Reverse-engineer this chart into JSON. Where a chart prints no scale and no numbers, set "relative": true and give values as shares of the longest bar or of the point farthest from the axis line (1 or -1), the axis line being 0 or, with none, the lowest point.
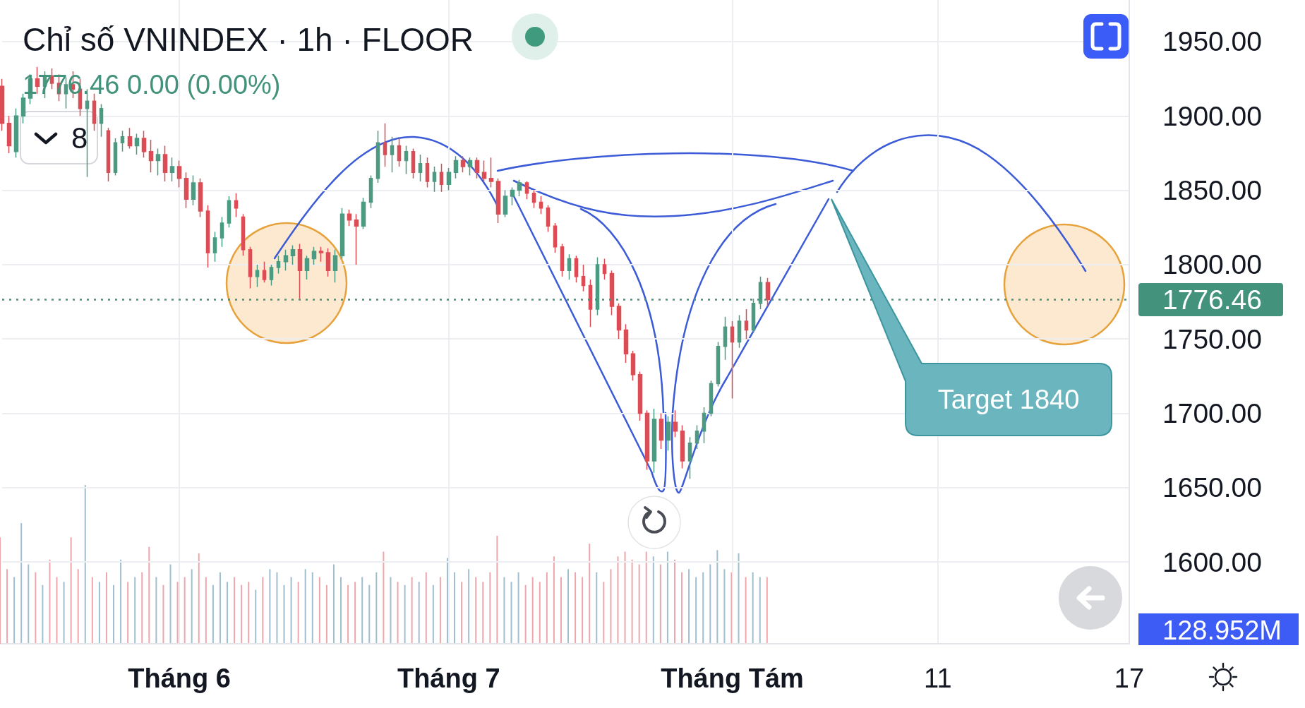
{
  "chart_data": [
    {
      "type": "candlestick",
      "title": "Chỉ số VNINDEX · 1h · FLOOR",
      "subtitle": "1776.46 0.00 (0.00%)",
      "categories": [
        null,
        null,
        null,
        null,
        null,
        null,
        null,
        null,
        null,
        null,
        null,
        null,
        null,
        null,
        null,
        null,
        null,
        null,
        null,
        null,
        null,
        null,
        null,
        null,
        null,
        "Tháng 6",
        null,
        null,
        null,
        null,
        null,
        null,
        null,
        null,
        null,
        null,
        null,
        null,
        null,
        null,
        null,
        null,
        null,
        null,
        null,
        null,
        null,
        null,
        null,
        null,
        null,
        null,
        null,
        null,
        null,
        null,
        null,
        null,
        null,
        null,
        null,
        null,
        null,
        "Tháng 7",
        null,
        null,
        null,
        null,
        null,
        null,
        null,
        null,
        null,
        null,
        null,
        null,
        null,
        null,
        null,
        null,
        null,
        null,
        null,
        null,
        null,
        null,
        null,
        null,
        null,
        null,
        null,
        null,
        null,
        null,
        null,
        null,
        null,
        null,
        null,
        null,
        null,
        null,
        null,
        "Tháng Tám",
        null,
        null,
        null,
        null,
        null,
        null,
        null,
        null,
        null,
        null,
        null,
        null,
        null,
        null,
        null,
        null,
        null,
        null,
        null,
        null,
        null,
        null,
        null,
        null,
        null,
        null,
        null,
        null,
        "11",
        null,
        null,
        null,
        null,
        null,
        null,
        null,
        null,
        null,
        null,
        null,
        null,
        null,
        null,
        null,
        null,
        null,
        null,
        null,
        null,
        null,
        null,
        null,
        null,
        null,
        null,
        "17"
      ],
      "ohlc": [
        [
          1920,
          1925,
          1890,
          1895
        ],
        [
          1895,
          1900,
          1875,
          1880
        ],
        [
          1876,
          1905,
          1872,
          1900
        ],
        [
          1900,
          1915,
          1895,
          1912
        ],
        [
          1912,
          1928,
          1908,
          1925
        ],
        [
          1925,
          1933,
          1915,
          1920
        ],
        [
          1920,
          1930,
          1912,
          1927
        ],
        [
          1927,
          1932,
          1918,
          1922
        ],
        [
          1922,
          1928,
          1910,
          1915
        ],
        [
          1915,
          1926,
          1905,
          1921
        ],
        [
          1921,
          1930,
          1912,
          1918
        ],
        [
          1918,
          1925,
          1900,
          1905
        ],
        [
          1905,
          1918,
          1859,
          1910
        ],
        [
          1910,
          1915,
          1890,
          1895
        ],
        [
          1895,
          1908,
          1886,
          1905
        ],
        [
          1890,
          1892,
          1856,
          1862
        ],
        [
          1862,
          1885,
          1860,
          1882
        ],
        [
          1882,
          1890,
          1876,
          1886
        ],
        [
          1886,
          1892,
          1878,
          1880
        ],
        [
          1880,
          1888,
          1874,
          1885
        ],
        [
          1885,
          1890,
          1872,
          1876
        ],
        [
          1876,
          1884,
          1862,
          1870
        ],
        [
          1870,
          1878,
          1860,
          1874
        ],
        [
          1874,
          1880,
          1856,
          1862
        ],
        [
          1862,
          1872,
          1856,
          1866
        ],
        [
          1866,
          1870,
          1852,
          1858
        ],
        [
          1858,
          1862,
          1838,
          1844
        ],
        [
          1844,
          1860,
          1840,
          1855
        ],
        [
          1855,
          1858,
          1832,
          1836
        ],
        [
          1836,
          1840,
          1798,
          1808
        ],
        [
          1808,
          1822,
          1802,
          1818
        ],
        [
          1818,
          1832,
          1812,
          1828
        ],
        [
          1828,
          1846,
          1825,
          1843
        ],
        [
          1843,
          1848,
          1832,
          1838
        ],
        [
          1832,
          1834,
          1806,
          1810
        ],
        [
          1810,
          1812,
          1784,
          1792
        ],
        [
          1792,
          1800,
          1785,
          1796
        ],
        [
          1796,
          1802,
          1788,
          1790
        ],
        [
          1790,
          1800,
          1786,
          1798
        ],
        [
          1798,
          1806,
          1794,
          1802
        ],
        [
          1802,
          1810,
          1796,
          1806
        ],
        [
          1806,
          1813,
          1800,
          1810
        ],
        [
          1810,
          1814,
          1777,
          1796
        ],
        [
          1796,
          1806,
          1790,
          1804
        ],
        [
          1804,
          1812,
          1800,
          1809
        ],
        [
          1809,
          1812,
          1802,
          1808
        ],
        [
          1808,
          1811,
          1792,
          1796
        ],
        [
          1796,
          1810,
          1788,
          1806
        ],
        [
          1806,
          1838,
          1804,
          1834
        ],
        [
          1834,
          1837,
          1826,
          1830
        ],
        [
          1830,
          1834,
          1800,
          1826
        ],
        [
          1826,
          1845,
          1824,
          1842
        ],
        [
          1842,
          1860,
          1838,
          1858
        ],
        [
          1858,
          1890,
          1855,
          1882
        ],
        [
          1882,
          1895,
          1866,
          1874
        ],
        [
          1874,
          1886,
          1862,
          1880
        ],
        [
          1880,
          1885,
          1866,
          1870
        ],
        [
          1870,
          1880,
          1861,
          1876
        ],
        [
          1876,
          1878,
          1858,
          1862
        ],
        [
          1862,
          1874,
          1856,
          1868
        ],
        [
          1868,
          1872,
          1852,
          1856
        ],
        [
          1856,
          1866,
          1849,
          1862
        ],
        [
          1862,
          1868,
          1849,
          1854
        ],
        [
          1854,
          1865,
          1850,
          1862
        ],
        [
          1862,
          1873,
          1858,
          1870
        ],
        [
          1870,
          1873,
          1862,
          1866
        ],
        [
          1866,
          1872,
          1860,
          1870
        ],
        [
          1870,
          1872,
          1858,
          1862
        ],
        [
          1862,
          1870,
          1856,
          1858
        ],
        [
          1858,
          1872,
          1852,
          1856
        ],
        [
          1856,
          1858,
          1828,
          1834
        ],
        [
          1834,
          1850,
          1832,
          1846
        ],
        [
          1846,
          1852,
          1840,
          1850
        ],
        [
          1850,
          1857,
          1846,
          1855
        ],
        [
          1855,
          1856,
          1844,
          1848
        ],
        [
          1848,
          1850,
          1838,
          1842
        ],
        [
          1842,
          1846,
          1834,
          1838
        ],
        [
          1838,
          1840,
          1822,
          1826
        ],
        [
          1826,
          1828,
          1808,
          1812
        ],
        [
          1812,
          1814,
          1792,
          1796
        ],
        [
          1796,
          1807,
          1790,
          1804
        ],
        [
          1804,
          1806,
          1788,
          1792
        ],
        [
          1792,
          1800,
          1782,
          1786
        ],
        [
          1786,
          1790,
          1758,
          1770
        ],
        [
          1770,
          1805,
          1766,
          1800
        ],
        [
          1800,
          1804,
          1790,
          1794
        ],
        [
          1794,
          1796,
          1766,
          1772
        ],
        [
          1772,
          1774,
          1750,
          1756
        ],
        [
          1756,
          1760,
          1734,
          1740
        ],
        [
          1740,
          1742,
          1722,
          1726
        ],
        [
          1726,
          1728,
          1695,
          1700
        ],
        [
          1700,
          1702,
          1662,
          1668
        ],
        [
          1668,
          1703,
          1660,
          1696
        ],
        [
          1696,
          1700,
          1676,
          1682
        ],
        [
          1682,
          1698,
          1675,
          1694
        ],
        [
          1694,
          1702,
          1684,
          1688
        ],
        [
          1688,
          1692,
          1663,
          1668
        ],
        [
          1668,
          1684,
          1656,
          1680
        ],
        [
          1680,
          1692,
          1676,
          1688
        ],
        [
          1688,
          1704,
          1680,
          1700
        ],
        [
          1700,
          1722,
          1698,
          1720
        ],
        [
          1720,
          1748,
          1718,
          1745
        ],
        [
          1745,
          1765,
          1736,
          1758
        ],
        [
          1758,
          1762,
          1710,
          1748
        ],
        [
          1748,
          1766,
          1744,
          1762
        ],
        [
          1762,
          1770,
          1750,
          1756
        ],
        [
          1756,
          1777,
          1754,
          1774
        ],
        [
          1774,
          1792,
          1770,
          1788
        ],
        [
          1788,
          1791,
          1772,
          1776.46
        ],
        null,
        null,
        null,
        null,
        null,
        null,
        null,
        null,
        null,
        null,
        null,
        null,
        null,
        null,
        null,
        null,
        null,
        null,
        null,
        null,
        null,
        null,
        null,
        null,
        null,
        null,
        null,
        null,
        null,
        null,
        null,
        null,
        null,
        null,
        null,
        null,
        null,
        null,
        null,
        null,
        null,
        null,
        null,
        null,
        null,
        null,
        null,
        null,
        null,
        null,
        null
      ],
      "colors": [
        "#dc4c55",
        "#dc4c55",
        "#4b9a82",
        "#4b9a82",
        "#4b9a82",
        "#dc4c55",
        "#4b9a82",
        "#dc4c55",
        "#dc4c55",
        "#4b9a82",
        "#dc4c55",
        "#dc4c55",
        "#4b9a82",
        "#dc4c55",
        "#4b9a82",
        "#dc4c55",
        "#4b9a82",
        "#4b9a82",
        "#dc4c55",
        "#4b9a82",
        "#dc4c55",
        "#dc4c55",
        "#4b9a82",
        "#dc4c55",
        "#4b9a82",
        "#dc4c55",
        "#dc4c55",
        "#4b9a82",
        "#dc4c55",
        "#dc4c55",
        "#4b9a82",
        "#4b9a82",
        "#4b9a82",
        "#dc4c55",
        "#dc4c55",
        "#dc4c55",
        "#4b9a82",
        "#dc4c55",
        "#4b9a82",
        "#4b9a82",
        "#4b9a82",
        "#4b9a82",
        "#dc4c55",
        "#4b9a82",
        "#4b9a82",
        "#dc4c55",
        "#dc4c55",
        "#4b9a82",
        "#4b9a82",
        "#dc4c55",
        "#dc4c55",
        "#4b9a82",
        "#4b9a82",
        "#4b9a82",
        "#dc4c55",
        "#4b9a82",
        "#dc4c55",
        "#4b9a82",
        "#dc4c55",
        "#4b9a82",
        "#dc4c55",
        "#4b9a82",
        "#dc4c55",
        "#4b9a82",
        "#4b9a82",
        "#dc4c55",
        "#4b9a82",
        "#dc4c55",
        "#dc4c55",
        "#dc4c55",
        "#dc4c55",
        "#4b9a82",
        "#4b9a82",
        "#4b9a82",
        "#dc4c55",
        "#dc4c55",
        "#dc4c55",
        "#dc4c55",
        "#dc4c55",
        "#dc4c55",
        "#4b9a82",
        "#dc4c55",
        "#dc4c55",
        "#dc4c55",
        "#4b9a82",
        "#dc4c55",
        "#dc4c55",
        "#dc4c55",
        "#dc4c55",
        "#dc4c55",
        "#dc4c55",
        "#dc4c55",
        "#4b9a82",
        "#dc4c55",
        "#4b9a82",
        "#dc4c55",
        "#dc4c55",
        "#4b9a82",
        "#4b9a82",
        "#4b9a82",
        "#4b9a82",
        "#4b9a82",
        "#4b9a82",
        "#dc4c55",
        "#4b9a82",
        "#dc4c55",
        "#4b9a82",
        "#4b9a82",
        "#dc4c55",
        null,
        null,
        null,
        null,
        null,
        null,
        null,
        null,
        null,
        null,
        null,
        null,
        null,
        null,
        null,
        null,
        null,
        null,
        null,
        null,
        null,
        null,
        null,
        null,
        null,
        null,
        null,
        null,
        null,
        null,
        null,
        null,
        null,
        null,
        null,
        null,
        null,
        null,
        null,
        null,
        null,
        null,
        null,
        null,
        null,
        null,
        null,
        null,
        null,
        null,
        null
      ],
      "ylim": [
        1545,
        1978
      ],
      "yticks": [
        {
          "value": 1600,
          "label": "1600.00"
        },
        {
          "value": 1650,
          "label": "1650.00"
        },
        {
          "value": 1700,
          "label": "1700.00"
        },
        {
          "value": 1750,
          "label": "1750.00"
        },
        {
          "value": 1800,
          "label": "1800.00"
        },
        {
          "value": 1850,
          "label": "1850.00"
        },
        {
          "value": 1900,
          "label": "1900.00"
        },
        {
          "value": 1950,
          "label": "1950.00"
        }
      ],
      "grid": true,
      "ref_lines": [
        {
          "axis": "y",
          "value": 1776.46,
          "label": "1776.46",
          "color": "#43927b",
          "line_style": "dotted"
        }
      ],
      "annotations": [
        "8",
        "Target 1840"
      ]
    },
    {
      "type": "bar",
      "relative": true,
      "tick_labels": false,
      "categories": [
        null,
        null,
        null,
        null,
        null,
        null,
        null,
        null,
        null,
        null,
        null,
        null,
        null,
        null,
        null,
        null,
        null,
        null,
        null,
        null,
        null,
        null,
        null,
        null,
        null,
        null,
        null,
        null,
        null,
        null,
        null,
        null,
        null,
        null,
        null,
        null,
        null,
        null,
        null,
        null,
        null,
        null,
        null,
        null,
        null,
        null,
        null,
        null,
        null,
        null,
        null,
        null,
        null,
        null,
        null,
        null,
        null,
        null,
        null,
        null,
        null,
        null,
        null,
        null,
        null,
        null,
        null,
        null,
        null,
        null,
        null,
        null,
        null,
        null,
        null,
        null,
        null,
        null,
        null,
        null,
        null,
        null,
        null,
        null,
        null,
        null,
        null,
        null,
        null,
        null,
        null,
        null,
        null,
        null,
        null,
        null,
        null,
        null,
        null,
        null,
        null,
        null,
        null,
        null,
        null,
        null,
        null,
        null,
        null,
        null,
        null,
        null,
        null,
        null,
        null,
        null,
        null,
        null,
        null,
        null,
        null,
        null,
        null,
        null,
        null,
        null,
        null,
        null,
        null,
        null,
        null,
        null,
        null,
        null,
        null,
        null,
        null,
        null,
        null,
        null,
        null,
        null,
        null,
        null,
        null,
        null,
        null,
        null,
        null,
        null,
        null,
        null,
        null,
        null,
        null,
        null,
        null,
        null,
        null,
        null
      ],
      "values": [
        0.67,
        0.47,
        0.42,
        0.76,
        0.5,
        0.45,
        0.37,
        0.53,
        0.42,
        0.39,
        0.67,
        0.47,
        1,
        0.42,
        0.39,
        0.45,
        0.37,
        0.53,
        0.39,
        0.42,
        0.45,
        0.61,
        0.42,
        0.37,
        0.5,
        0.39,
        0.42,
        0.47,
        0.57,
        0.42,
        0.37,
        0.45,
        0.39,
        0.42,
        0.37,
        0.39,
        0.34,
        0.42,
        0.47,
        0.45,
        0.37,
        0.42,
        0.39,
        0.47,
        0.45,
        0.42,
        0.37,
        0.5,
        0.42,
        0.37,
        0.39,
        0.42,
        0.37,
        0.45,
        0.58,
        0.42,
        0.39,
        0.37,
        0.42,
        0.39,
        0.45,
        0.37,
        0.42,
        0.54,
        0.45,
        0.39,
        0.47,
        0.42,
        0.39,
        0.45,
        0.68,
        0.42,
        0.39,
        0.45,
        0.37,
        0.42,
        0.39,
        0.45,
        0.55,
        0.42,
        0.47,
        0.45,
        0.42,
        0.63,
        0.45,
        0.39,
        0.47,
        0.55,
        0.58,
        0.53,
        0.5,
        0.58,
        0.55,
        0.5,
        0.58,
        0.53,
        0.45,
        0.47,
        0.42,
        0.45,
        0.5,
        0.59,
        0.47,
        0.45,
        0.57,
        0.42,
        0.45,
        0.42,
        0.42,
        null,
        null,
        null,
        null,
        null,
        null,
        null,
        null,
        null,
        null,
        null,
        null,
        null,
        null,
        null,
        null,
        null,
        null,
        null,
        null,
        null,
        null,
        null,
        null,
        null,
        null,
        null,
        null,
        null,
        null,
        null,
        null,
        null,
        null,
        null,
        null,
        null,
        null,
        null,
        null,
        null,
        null,
        null,
        null,
        null,
        null,
        null,
        null,
        null,
        null,
        null
      ],
      "colors": [
        "#eda7ac",
        "#eda7ac",
        "#9fbfcf",
        "#9fbfcf",
        "#9fbfcf",
        "#eda7ac",
        "#9fbfcf",
        "#eda7ac",
        "#eda7ac",
        "#9fbfcf",
        "#eda7ac",
        "#eda7ac",
        "#9fbfcf",
        "#eda7ac",
        "#9fbfcf",
        "#eda7ac",
        "#9fbfcf",
        "#9fbfcf",
        "#eda7ac",
        "#9fbfcf",
        "#eda7ac",
        "#eda7ac",
        "#9fbfcf",
        "#eda7ac",
        "#9fbfcf",
        "#eda7ac",
        "#eda7ac",
        "#9fbfcf",
        "#eda7ac",
        "#eda7ac",
        "#9fbfcf",
        "#9fbfcf",
        "#9fbfcf",
        "#eda7ac",
        "#eda7ac",
        "#eda7ac",
        "#9fbfcf",
        "#eda7ac",
        "#9fbfcf",
        "#9fbfcf",
        "#9fbfcf",
        "#9fbfcf",
        "#eda7ac",
        "#9fbfcf",
        "#9fbfcf",
        "#eda7ac",
        "#eda7ac",
        "#9fbfcf",
        "#9fbfcf",
        "#eda7ac",
        "#eda7ac",
        "#9fbfcf",
        "#9fbfcf",
        "#9fbfcf",
        "#eda7ac",
        "#9fbfcf",
        "#eda7ac",
        "#9fbfcf",
        "#eda7ac",
        "#9fbfcf",
        "#eda7ac",
        "#9fbfcf",
        "#eda7ac",
        "#9fbfcf",
        "#9fbfcf",
        "#eda7ac",
        "#9fbfcf",
        "#eda7ac",
        "#eda7ac",
        "#eda7ac",
        "#eda7ac",
        "#9fbfcf",
        "#9fbfcf",
        "#9fbfcf",
        "#eda7ac",
        "#eda7ac",
        "#eda7ac",
        "#eda7ac",
        "#eda7ac",
        "#eda7ac",
        "#9fbfcf",
        "#eda7ac",
        "#eda7ac",
        "#eda7ac",
        "#9fbfcf",
        "#eda7ac",
        "#eda7ac",
        "#eda7ac",
        "#eda7ac",
        "#eda7ac",
        "#eda7ac",
        "#eda7ac",
        "#9fbfcf",
        "#eda7ac",
        "#9fbfcf",
        "#eda7ac",
        "#eda7ac",
        "#9fbfcf",
        "#9fbfcf",
        "#9fbfcf",
        "#9fbfcf",
        "#9fbfcf",
        "#9fbfcf",
        "#eda7ac",
        "#9fbfcf",
        "#eda7ac",
        "#9fbfcf",
        "#9fbfcf",
        "#eda7ac",
        null,
        null,
        null,
        null,
        null,
        null,
        null,
        null,
        null,
        null,
        null,
        null,
        null,
        null,
        null,
        null,
        null,
        null,
        null,
        null,
        null,
        null,
        null,
        null,
        null,
        null,
        null,
        null,
        null,
        null,
        null,
        null,
        null,
        null,
        null,
        null,
        null,
        null,
        null,
        null,
        null,
        null,
        null,
        null,
        null,
        null,
        null,
        null,
        null,
        null,
        null
      ],
      "annotations": [
        "128.952M"
      ]
    }
  ]
}
